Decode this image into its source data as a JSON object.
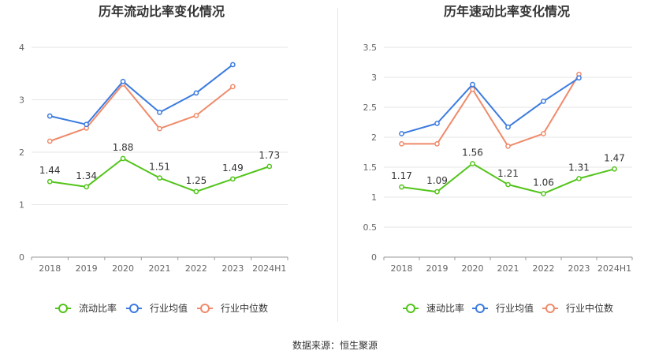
{
  "source_text": "数据来源：恒生聚源",
  "chart_data": [
    {
      "type": "line",
      "title": "历年流动比率变化情况",
      "categories": [
        "2018",
        "2019",
        "2020",
        "2021",
        "2022",
        "2023",
        "2024H1"
      ],
      "ylim": [
        0,
        4
      ],
      "yticks": [
        "0",
        "1",
        "2",
        "3",
        "4"
      ],
      "grid": true,
      "legend_position": "bottom",
      "series": [
        {
          "name": "流动比率",
          "color": "#52c41a",
          "values": [
            1.44,
            1.34,
            1.88,
            1.51,
            1.25,
            1.49,
            1.73
          ],
          "labels": [
            "1.44",
            "1.34",
            "1.88",
            "1.51",
            "1.25",
            "1.49",
            "1.73"
          ]
        },
        {
          "name": "行业均值",
          "color": "#3b7be0",
          "values": [
            2.69,
            2.53,
            3.35,
            2.76,
            3.13,
            3.67,
            null
          ]
        },
        {
          "name": "行业中位数",
          "color": "#f08a6a",
          "values": [
            2.21,
            2.46,
            3.3,
            2.45,
            2.7,
            3.25,
            null
          ]
        }
      ]
    },
    {
      "type": "line",
      "title": "历年速动比率变化情况",
      "categories": [
        "2018",
        "2019",
        "2020",
        "2021",
        "2022",
        "2023",
        "2024H1"
      ],
      "ylim": [
        0,
        3.5
      ],
      "yticks": [
        "0",
        "0.5",
        "1",
        "1.5",
        "2",
        "2.5",
        "3",
        "3.5"
      ],
      "grid": true,
      "legend_position": "bottom",
      "series": [
        {
          "name": "速动比率",
          "color": "#52c41a",
          "values": [
            1.17,
            1.09,
            1.56,
            1.21,
            1.06,
            1.31,
            1.47
          ],
          "labels": [
            "1.17",
            "1.09",
            "1.56",
            "1.21",
            "1.06",
            "1.31",
            "1.47"
          ]
        },
        {
          "name": "行业均值",
          "color": "#3b7be0",
          "values": [
            2.06,
            2.23,
            2.88,
            2.17,
            2.6,
            2.99,
            null
          ]
        },
        {
          "name": "行业中位数",
          "color": "#f08a6a",
          "values": [
            1.89,
            1.89,
            2.8,
            1.85,
            2.06,
            3.05,
            null
          ]
        }
      ]
    }
  ]
}
